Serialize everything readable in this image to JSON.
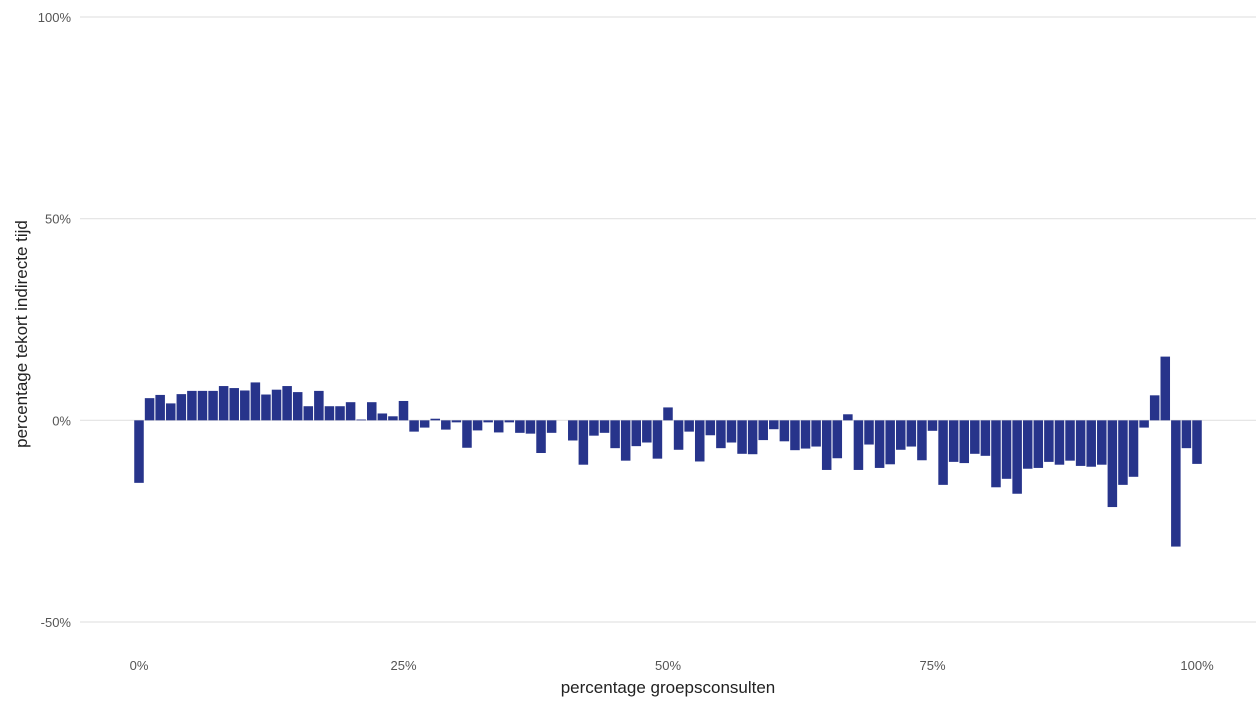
{
  "chart_data": {
    "type": "bar",
    "title": "",
    "xlabel": "percentage groepsconsulten",
    "ylabel": "percentage tekort indirecte tijd",
    "x_unit": "percent",
    "y_unit": "percent",
    "xlim": [
      0,
      100
    ],
    "ylim": [
      -50,
      100
    ],
    "x_ticks": [
      0,
      25,
      50,
      75,
      100
    ],
    "x_tick_labels": [
      "0%",
      "25%",
      "50%",
      "75%",
      "100%"
    ],
    "y_ticks": [
      -50,
      0,
      50,
      100
    ],
    "y_tick_labels": [
      "-50%",
      "0%",
      "50%",
      "100%"
    ],
    "grid": "horizontal",
    "legend": "none",
    "bar_color": "#27348b",
    "x": [
      0,
      1,
      2,
      3,
      4,
      5,
      6,
      7,
      8,
      9,
      10,
      11,
      12,
      13,
      14,
      15,
      16,
      17,
      18,
      19,
      20,
      21,
      22,
      23,
      24,
      25,
      26,
      27,
      28,
      29,
      30,
      31,
      32,
      33,
      34,
      35,
      36,
      37,
      38,
      39,
      40,
      41,
      42,
      43,
      44,
      45,
      46,
      47,
      48,
      49,
      50,
      51,
      52,
      53,
      54,
      55,
      56,
      57,
      58,
      59,
      60,
      61,
      62,
      63,
      64,
      65,
      66,
      67,
      68,
      69,
      70,
      71,
      72,
      73,
      74,
      75,
      76,
      77,
      78,
      79,
      80,
      81,
      82,
      83,
      84,
      85,
      86,
      87,
      88,
      89,
      90,
      91,
      92,
      93,
      94,
      95,
      96,
      97,
      98,
      99,
      100
    ],
    "values": [
      -15.5,
      5.5,
      6.3,
      4.2,
      6.5,
      7.3,
      7.3,
      7.3,
      8.5,
      8.0,
      7.4,
      9.4,
      6.4,
      7.6,
      8.5,
      7.0,
      3.5,
      7.3,
      3.5,
      3.5,
      4.5,
      0.2,
      4.5,
      1.7,
      1.0,
      4.8,
      -2.8,
      -1.8,
      0.4,
      -2.3,
      -0.5,
      -6.8,
      -2.5,
      -0.5,
      -3.0,
      -0.5,
      -3.1,
      -3.3,
      -8.1,
      -3.1,
      0,
      -5.0,
      -11.0,
      -3.8,
      -3.1,
      -6.9,
      -10.0,
      -6.4,
      -5.5,
      -9.5,
      3.2,
      -7.3,
      -2.8,
      -10.2,
      -3.7,
      -6.9,
      -5.5,
      -8.3,
      -8.4,
      -4.9,
      -2.2,
      -5.2,
      -7.4,
      -7.0,
      -6.5,
      -12.3,
      -9.4,
      1.5,
      -12.3,
      -6.0,
      -11.8,
      -10.9,
      -7.3,
      -6.5,
      -9.9,
      -2.6,
      -16.0,
      -10.3,
      -10.6,
      -8.3,
      -8.8,
      -16.6,
      -14.5,
      -18.2,
      -12.0,
      -11.8,
      -10.3,
      -11.0,
      -10.0,
      -11.3,
      -11.5,
      -11.0,
      -21.5,
      -16.0,
      -14.0,
      -1.8,
      6.2,
      15.8,
      -31.3,
      -6.9,
      -10.8
    ]
  }
}
